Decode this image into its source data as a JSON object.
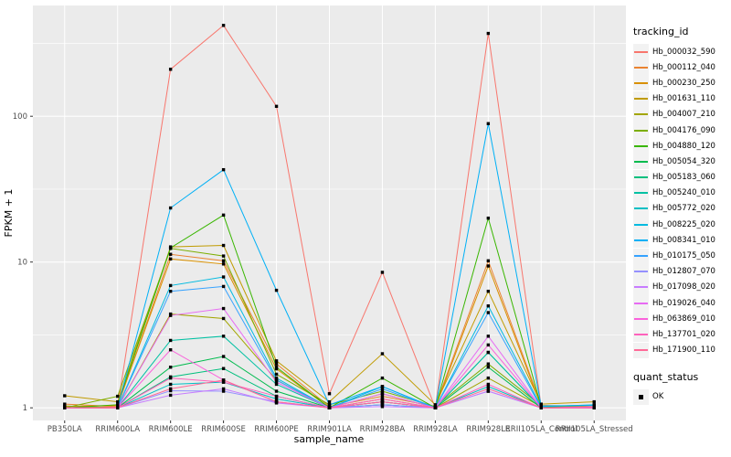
{
  "chart_data": {
    "type": "line",
    "title": "",
    "xlabel": "sample_name",
    "ylabel": "FPKM + 1",
    "y_scale": "log10",
    "y_ticks": [
      1,
      10,
      100
    ],
    "y_minor_ticks_log10": [
      0.5,
      1.5,
      2.5
    ],
    "ylim_log10": [
      -0.09,
      2.76
    ],
    "grid": true,
    "panel_bg": "#EBEBEB",
    "grid_color": "#FFFFFF",
    "tick_label_color": "#4D4D4D",
    "point_color": "#000000",
    "legend_position": "right",
    "legend_title": "tracking_id",
    "shape_legend": {
      "title": "quant_status",
      "items": [
        "OK"
      ]
    },
    "categories": [
      "PB350LA",
      "RRIM600LA",
      "RRIM600LE",
      "RRIM600SE",
      "RRIM600PE",
      "RRIM901LA",
      "RRIM928BA",
      "RRIM928LA",
      "RRIM928LE",
      "RRII105LA_Control",
      "RRII105LA_Stressed"
    ],
    "series": [
      {
        "name": "Hb_000032_590",
        "color": "#F8766D",
        "values": [
          1.0,
          1.02,
          210,
          420,
          117,
          1.25,
          8.5,
          1.0,
          370,
          1.02,
          1.0
        ]
      },
      {
        "name": "Hb_000112_040",
        "color": "#EA8331",
        "values": [
          1.06,
          1.02,
          11.3,
          10.2,
          2.0,
          1.02,
          1.2,
          1.02,
          10.2,
          1.04,
          1.02
        ]
      },
      {
        "name": "Hb_000230_250",
        "color": "#D89000",
        "values": [
          1.02,
          1.04,
          10.5,
          9.7,
          1.85,
          1.0,
          1.15,
          1.0,
          9.4,
          1.02,
          1.04
        ]
      },
      {
        "name": "Hb_001631_110",
        "color": "#C09B00",
        "values": [
          1.21,
          1.1,
          12.7,
          13.0,
          2.1,
          1.1,
          2.35,
          1.05,
          6.3,
          1.06,
          1.1
        ]
      },
      {
        "name": "Hb_004007_210",
        "color": "#A3A500",
        "values": [
          1.03,
          1.0,
          4.4,
          4.1,
          1.55,
          1.0,
          1.25,
          1.0,
          1.6,
          1.02,
          1.0
        ]
      },
      {
        "name": "Hb_004176_090",
        "color": "#7CAE00",
        "values": [
          1.0,
          1.2,
          12.4,
          11.0,
          1.7,
          1.05,
          1.3,
          1.02,
          2.0,
          1.03,
          1.02
        ]
      },
      {
        "name": "Hb_004880_120",
        "color": "#39B600",
        "values": [
          1.0,
          1.05,
          12.5,
          21.0,
          1.9,
          1.0,
          1.6,
          1.0,
          20.0,
          1.02,
          1.0
        ]
      },
      {
        "name": "Hb_005054_320",
        "color": "#00BB4E",
        "values": [
          1.0,
          1.0,
          1.9,
          2.25,
          1.3,
          1.0,
          1.1,
          1.0,
          1.9,
          1.0,
          1.0
        ]
      },
      {
        "name": "Hb_005183_060",
        "color": "#00BF7D",
        "values": [
          1.0,
          1.0,
          1.63,
          1.86,
          1.2,
          1.0,
          1.05,
          1.0,
          2.4,
          1.0,
          1.0
        ]
      },
      {
        "name": "Hb_005240_010",
        "color": "#00C1A3",
        "values": [
          1.0,
          1.0,
          2.9,
          3.1,
          1.45,
          1.0,
          1.1,
          1.0,
          2.4,
          1.0,
          1.0
        ]
      },
      {
        "name": "Hb_005772_020",
        "color": "#00BFC4",
        "values": [
          1.0,
          1.0,
          1.45,
          1.5,
          1.15,
          1.0,
          1.05,
          1.0,
          1.4,
          1.0,
          1.0
        ]
      },
      {
        "name": "Hb_008225_020",
        "color": "#00BAE0",
        "values": [
          1.0,
          1.0,
          6.9,
          7.9,
          1.6,
          1.0,
          1.4,
          1.0,
          5.0,
          1.02,
          1.05
        ]
      },
      {
        "name": "Hb_008341_010",
        "color": "#00B0F6",
        "values": [
          1.0,
          1.0,
          23.5,
          43.0,
          6.4,
          1.05,
          1.4,
          1.0,
          89.0,
          1.03,
          1.04
        ]
      },
      {
        "name": "Hb_010175_050",
        "color": "#35A2FF",
        "values": [
          1.0,
          1.0,
          6.3,
          6.8,
          1.55,
          1.0,
          1.35,
          1.0,
          4.5,
          1.0,
          1.0
        ]
      },
      {
        "name": "Hb_012807_070",
        "color": "#9590FF",
        "values": [
          1.0,
          1.0,
          1.31,
          1.3,
          1.1,
          1.0,
          1.05,
          1.0,
          1.3,
          1.0,
          1.0
        ]
      },
      {
        "name": "Hb_017098_020",
        "color": "#C77CFF",
        "values": [
          1.0,
          1.0,
          1.22,
          1.35,
          1.08,
          1.0,
          1.02,
          1.0,
          1.3,
          1.0,
          1.0
        ]
      },
      {
        "name": "Hb_019026_040",
        "color": "#E76BF3",
        "values": [
          1.0,
          1.0,
          4.3,
          4.8,
          1.5,
          1.0,
          1.25,
          1.0,
          3.1,
          1.0,
          1.0
        ]
      },
      {
        "name": "Hb_063869_010",
        "color": "#FA62DB",
        "values": [
          1.0,
          1.0,
          2.5,
          1.55,
          1.1,
          1.0,
          1.1,
          1.0,
          2.7,
          1.0,
          1.0
        ]
      },
      {
        "name": "Hb_137701_020",
        "color": "#FF62BC",
        "values": [
          1.0,
          1.0,
          1.6,
          1.5,
          1.2,
          1.0,
          1.15,
          1.0,
          1.45,
          1.0,
          1.02
        ]
      },
      {
        "name": "Hb_171900_110",
        "color": "#FF6A98",
        "values": [
          1.0,
          1.0,
          1.35,
          1.55,
          1.1,
          1.0,
          1.1,
          1.0,
          1.35,
          1.0,
          1.0
        ]
      }
    ]
  }
}
